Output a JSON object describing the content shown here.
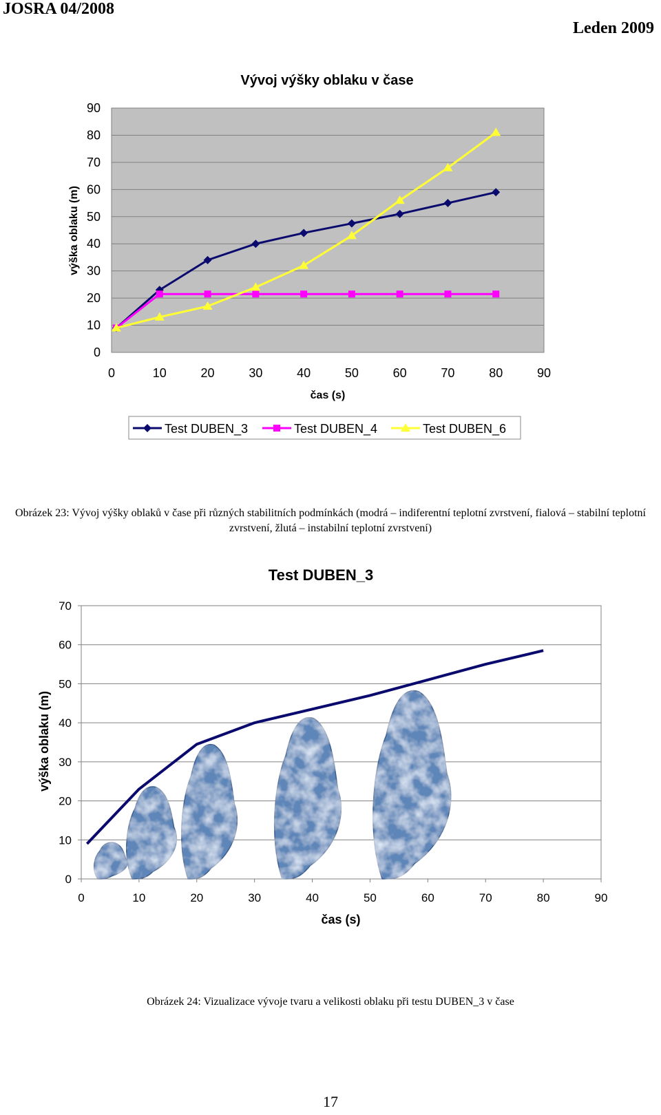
{
  "header": {
    "journal": "JOSRA 04/2008",
    "date": "Leden 2009"
  },
  "chart_data": [
    {
      "type": "line",
      "title": "Vývoj výšky oblaku v čase",
      "xlabel": "čas (s)",
      "ylabel": "výška oblaku (m)",
      "xlim": [
        0,
        90
      ],
      "ylim": [
        0,
        90
      ],
      "xticks": [
        0,
        10,
        20,
        30,
        40,
        50,
        60,
        70,
        80,
        90
      ],
      "yticks": [
        0,
        10,
        20,
        30,
        40,
        50,
        60,
        70,
        80,
        90
      ],
      "grid": true,
      "legend": "bottom",
      "series": [
        {
          "name": "Test DUBEN_3",
          "color": "#0a0a6e",
          "marker": "diamond",
          "x": [
            1,
            10,
            20,
            30,
            40,
            50,
            60,
            70,
            80
          ],
          "y": [
            9,
            23,
            34,
            40,
            44,
            47.5,
            51,
            55,
            59
          ]
        },
        {
          "name": "Test DUBEN_4",
          "color": "#ff00ff",
          "marker": "square",
          "x": [
            1,
            10,
            20,
            30,
            40,
            50,
            60,
            70,
            80
          ],
          "y": [
            9,
            21.5,
            21.5,
            21.5,
            21.5,
            21.5,
            21.5,
            21.5,
            21.5
          ]
        },
        {
          "name": "Test DUBEN_6",
          "color": "#ffff33",
          "marker": "triangle",
          "x": [
            1,
            10,
            20,
            30,
            40,
            50,
            60,
            70,
            80
          ],
          "y": [
            9,
            13,
            17,
            24,
            32,
            43,
            56,
            68,
            81
          ]
        }
      ]
    },
    {
      "type": "line",
      "title": "Test DUBEN_3",
      "xlabel": "čas (s)",
      "ylabel": "výška oblaku (m)",
      "xlim": [
        0,
        90
      ],
      "ylim": [
        0,
        70
      ],
      "xticks": [
        0,
        10,
        20,
        30,
        40,
        50,
        60,
        70,
        80,
        90
      ],
      "yticks": [
        0,
        10,
        20,
        30,
        40,
        50,
        60,
        70
      ],
      "grid": true,
      "series": [
        {
          "color": "#0a0a6e",
          "x": [
            1,
            10,
            20,
            30,
            40,
            50,
            60,
            70,
            80
          ],
          "y": [
            9,
            23,
            34.5,
            40,
            43.5,
            47,
            51,
            55,
            58.5
          ]
        }
      ],
      "clouds": [
        {
          "x": 2,
          "top": 9.5,
          "width": 6
        },
        {
          "x": 7.5,
          "top": 24,
          "width": 9
        },
        {
          "x": 17,
          "top": 35,
          "width": 10
        },
        {
          "x": 33,
          "top": 42,
          "width": 12
        },
        {
          "x": 50,
          "top": 49,
          "width": 14
        }
      ]
    }
  ],
  "captions": {
    "fig23": "Obrázek 23: Vývoj výšky oblaků v čase při různých stabilitních podmínkách (modrá – indiferentní teplotní zvrstvení, fialová – stabilní teplotní zvrstvení, žlutá – instabilní teplotní zvrstvení)",
    "fig24": "Obrázek 24: Vizualizace vývoje tvaru a velikosti oblaku při testu DUBEN_3 v čase"
  },
  "page_number": "17"
}
